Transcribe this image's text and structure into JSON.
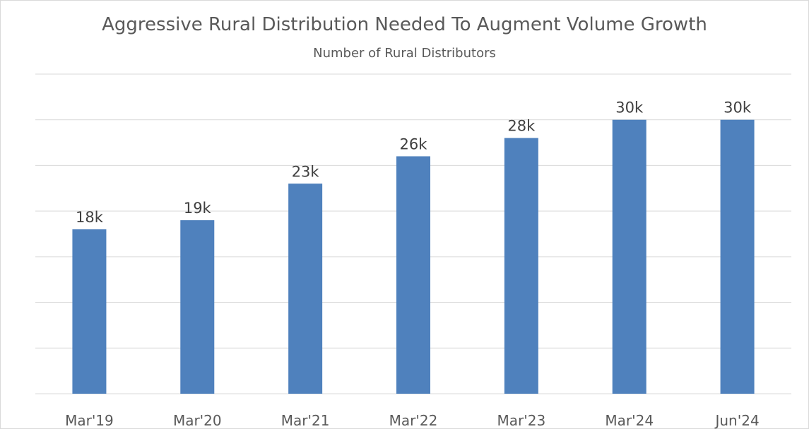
{
  "chart_data": {
    "type": "bar",
    "title": "Aggressive Rural Distribution Needed To Augment Volume Growth",
    "subtitle": "Number of Rural Distributors",
    "categories": [
      "Mar'19",
      "Mar'20",
      "Mar'21",
      "Mar'22",
      "Mar'23",
      "Mar'24",
      "Jun'24"
    ],
    "values": [
      18,
      19,
      23,
      26,
      28,
      30,
      30
    ],
    "data_labels": [
      "18k",
      "19k",
      "23k",
      "26k",
      "28k",
      "30k",
      "30k"
    ],
    "unit": "thousand distributors",
    "ylim": [
      0,
      35
    ],
    "grid": true,
    "y_tick_labels_shown": false,
    "legend": "none",
    "colors": {
      "bar": "#4f81bd",
      "grid": "#d9d9d9",
      "text": "#595959"
    }
  }
}
